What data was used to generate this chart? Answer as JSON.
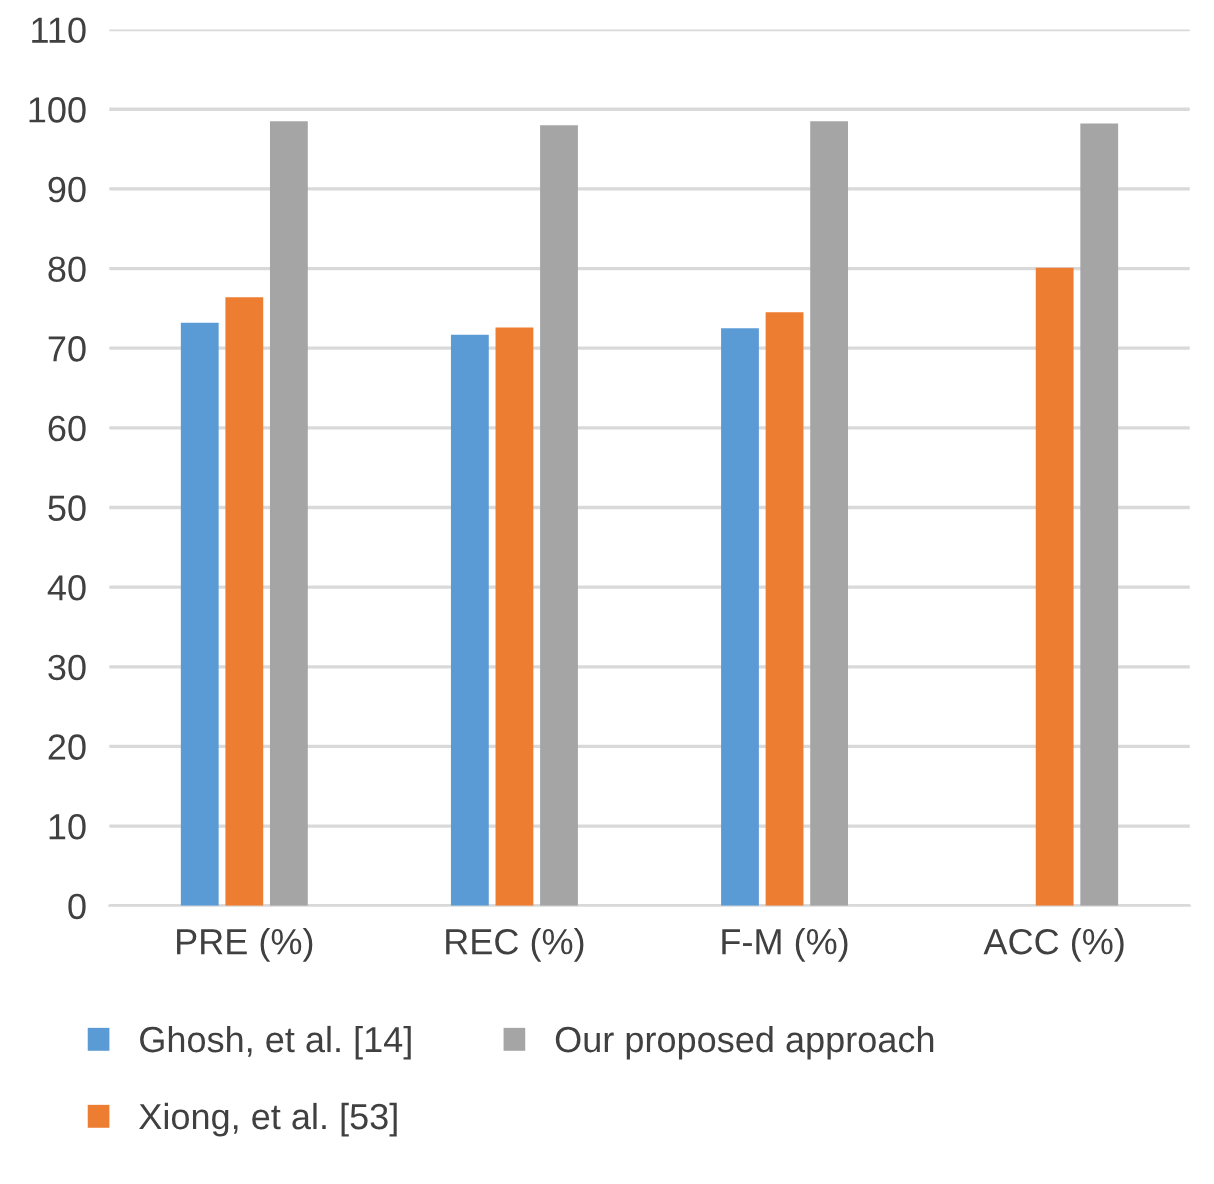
{
  "chart_data": {
    "type": "bar",
    "categories": [
      "PRE (%)",
      "REC (%)",
      "F-M (%)",
      "ACC (%)"
    ],
    "series": [
      {
        "name": "Ghosh, et al. [14]",
        "color": "#5b9bd5",
        "values": [
          73.2,
          71.7,
          72.5,
          null
        ]
      },
      {
        "name": "Xiong, et al. [53]",
        "color": "#ed7d31",
        "values": [
          76.4,
          72.6,
          74.5,
          80.1
        ]
      },
      {
        "name": "Our proposed approach",
        "color": "#a5a5a5",
        "values": [
          98.5,
          98.0,
          98.5,
          98.2
        ]
      }
    ],
    "ylim": [
      0,
      110
    ],
    "yticks": [
      0,
      10,
      20,
      30,
      40,
      50,
      60,
      70,
      80,
      90,
      100,
      110
    ],
    "grid": "y",
    "legend": "bottom"
  }
}
